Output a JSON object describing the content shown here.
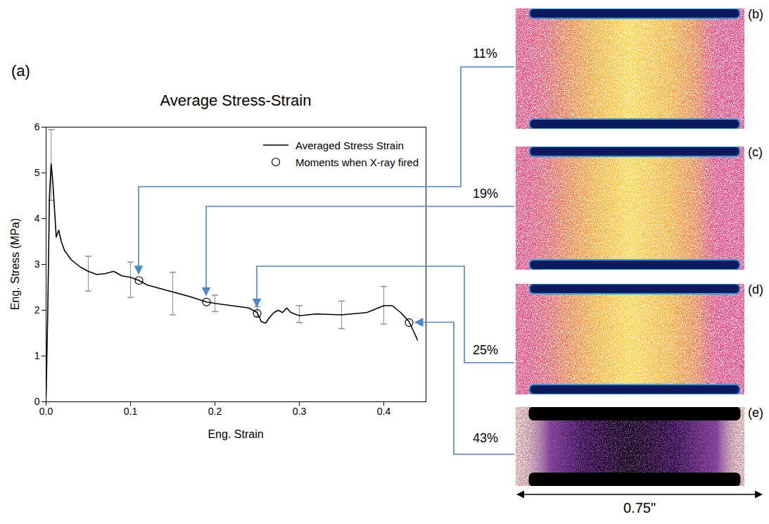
{
  "chart_data": {
    "type": "line",
    "panel_label": "(a)",
    "title": "Average Stress-Strain",
    "x_label": "Eng. Strain",
    "y_label": "Eng. Stress (MPa)",
    "xlim": [
      0,
      0.45
    ],
    "xticks": [
      {
        "value": 0,
        "label": "0.0"
      },
      0.1,
      0.2,
      0.3,
      0.4
    ],
    "ylim": [
      0,
      6
    ],
    "yticks": [
      0,
      1,
      2,
      3,
      4,
      5,
      6
    ],
    "grid": false,
    "legend": "top-right",
    "series": [
      {
        "name": "Averaged Stress Strain",
        "type": "line",
        "color": "#000000",
        "line_style": "solid",
        "x": [
          0,
          0.002,
          0.004,
          0.006,
          0.008,
          0.01,
          0.012,
          0.015,
          0.018,
          0.022,
          0.03,
          0.04,
          0.05,
          0.06,
          0.07,
          0.08,
          0.09,
          0.1,
          0.11,
          0.12,
          0.13,
          0.15,
          0.17,
          0.19,
          0.2,
          0.22,
          0.24,
          0.25,
          0.255,
          0.26,
          0.265,
          0.27,
          0.275,
          0.28,
          0.285,
          0.29,
          0.3,
          0.32,
          0.35,
          0.38,
          0.4,
          0.41,
          0.42,
          0.43,
          0.44
        ],
        "values": [
          0.1,
          2.0,
          4.5,
          5.2,
          4.8,
          4.2,
          3.6,
          3.75,
          3.5,
          3.3,
          3.1,
          2.95,
          2.85,
          2.78,
          2.8,
          2.85,
          2.75,
          2.72,
          2.65,
          2.55,
          2.5,
          2.4,
          2.3,
          2.18,
          2.15,
          2.1,
          2.05,
          1.95,
          1.75,
          1.72,
          1.85,
          1.95,
          2.0,
          1.95,
          2.05,
          1.95,
          1.88,
          1.92,
          1.9,
          1.95,
          2.1,
          2.1,
          1.95,
          1.75,
          1.35
        ],
        "error_bars": {
          "x": [
            0.006,
            0.05,
            0.1,
            0.15,
            0.2,
            0.25,
            0.3,
            0.35,
            0.4
          ],
          "low": [
            4.4,
            2.42,
            2.28,
            1.9,
            1.97,
            1.86,
            1.73,
            1.6,
            1.7
          ],
          "high": [
            5.95,
            3.18,
            3.05,
            2.83,
            2.33,
            2.08,
            2.1,
            2.2,
            2.52
          ]
        }
      },
      {
        "name": "Moments when X-ray fired",
        "type": "scatter",
        "marker": "circle",
        "color": "#000000",
        "x": [
          0.11,
          0.19,
          0.25,
          0.43
        ],
        "values": [
          2.65,
          2.18,
          1.93,
          1.73
        ]
      }
    ]
  },
  "images": [
    {
      "panel_label": "(b)",
      "strain": "11%"
    },
    {
      "panel_label": "(c)",
      "strain": "19%"
    },
    {
      "panel_label": "(d)",
      "strain": "25%"
    },
    {
      "panel_label": "(e)",
      "strain": "43%"
    }
  ],
  "scale_bar": "0.75\""
}
